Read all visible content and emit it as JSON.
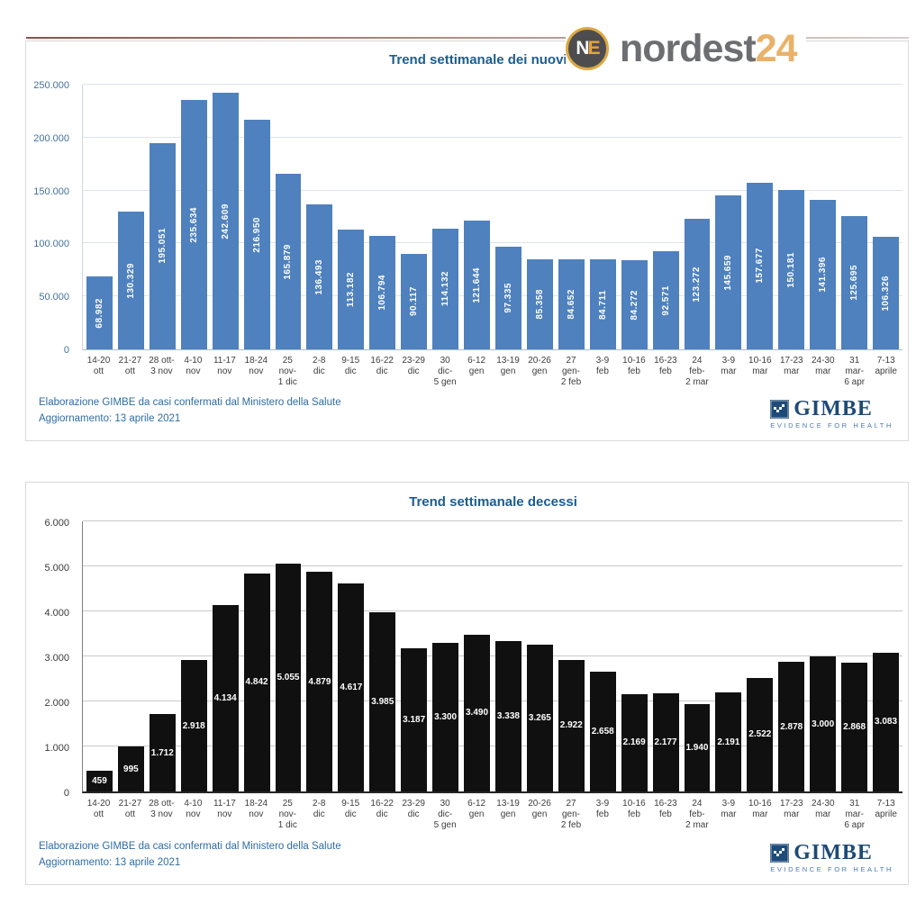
{
  "brand": {
    "badge_letter_n": "N",
    "badge_letter_e": "E",
    "name_part": "nordest",
    "number_part": "24",
    "name_color": "#6d6e71",
    "number_color": "#e9b269"
  },
  "gimbe_logo": {
    "name": "GIMBE",
    "tagline": "EVIDENCE FOR HEALTH",
    "color": "#1e4b78"
  },
  "footer": {
    "line1": "Elaborazione GIMBE da casi confermati dal Ministero della Salute",
    "line2": "Aggiornamento: 13 aprile 2021"
  },
  "chart_data": [
    {
      "type": "bar",
      "title": "Trend settimanale dei nuovi casi",
      "categories": [
        "14-20\nott",
        "21-27\nott",
        "28 ott-\n3 nov",
        "4-10\nnov",
        "11-17\nnov",
        "18-24\nnov",
        "25 nov-\n1 dic",
        "2-8 dic",
        "9-15\ndic",
        "16-22\ndic",
        "23-29\ndic",
        "30 dic-\n5 gen",
        "6-12\ngen",
        "13-19\ngen",
        "20-26\ngen",
        "27 gen-\n2 feb",
        "3-9 feb",
        "10-16\nfeb",
        "16-23\nfeb",
        "24 feb-\n2 mar",
        "3-9\nmar",
        "10-16\nmar",
        "17-23\nmar",
        "24-30\nmar",
        "31\nmar-\n6 apr",
        "7-13\naprile"
      ],
      "values": [
        68982,
        130329,
        195051,
        235634,
        242609,
        216950,
        165879,
        136493,
        113182,
        106794,
        90117,
        114132,
        121644,
        97335,
        85358,
        84652,
        84711,
        84272,
        92571,
        123272,
        145659,
        157677,
        150181,
        141396,
        125695,
        106326
      ],
      "value_labels": [
        "68.982",
        "130.329",
        "195.051",
        "235.634",
        "242.609",
        "216.950",
        "165.879",
        "136.493",
        "113.182",
        "106.794",
        "90.117",
        "114.132",
        "121.644",
        "97.335",
        "85.358",
        "84.652",
        "84.711",
        "84.272",
        "92.571",
        "123.272",
        "145.659",
        "157.677",
        "150.181",
        "141.396",
        "125.695",
        "106.326"
      ],
      "xlabel": "",
      "ylabel": "",
      "ylim": [
        0,
        250000
      ],
      "ytick_values": [
        0,
        50000,
        100000,
        150000,
        200000,
        250000
      ],
      "ytick_labels": [
        "0",
        "50.000",
        "100.000",
        "150.000",
        "200.000",
        "250.000"
      ],
      "bar_color": "#4e81bd",
      "value_label_color": "#ffffff",
      "value_label_rotation": "vertical",
      "grid": true,
      "legend": "none"
    },
    {
      "type": "bar",
      "title": "Trend settimanale decessi",
      "categories": [
        "14-20\nott",
        "21-27\nott",
        "28 ott-\n3 nov",
        "4-10\nnov",
        "11-17\nnov",
        "18-24\nnov",
        "25 nov-\n1 dic",
        "2-8 dic",
        "9-15\ndic",
        "16-22\ndic",
        "23-29\ndic",
        "30 dic-\n5 gen",
        "6-12\ngen",
        "13-19\ngen",
        "20-26\ngen",
        "27 gen-\n2 feb",
        "3-9 feb",
        "10-16\nfeb",
        "16-23\nfeb",
        "24 feb-\n2 mar",
        "3-9\nmar",
        "10-16\nmar",
        "17-23\nmar",
        "24-30\nmar",
        "31\nmar-\n6 apr",
        "7-13\naprile"
      ],
      "values": [
        459,
        995,
        1712,
        2918,
        4134,
        4842,
        5055,
        4879,
        4617,
        3985,
        3187,
        3300,
        3490,
        3338,
        3265,
        2922,
        2658,
        2169,
        2177,
        1940,
        2191,
        2522,
        2878,
        3000,
        2868,
        3083
      ],
      "value_labels": [
        "459",
        "995",
        "1.712",
        "2.918",
        "4.134",
        "4.842",
        "5.055",
        "4.879",
        "4.617",
        "3.985",
        "3.187",
        "3.300",
        "3.490",
        "3.338",
        "3.265",
        "2.922",
        "2.658",
        "2.169",
        "2.177",
        "1.940",
        "2.191",
        "2.522",
        "2.878",
        "3.000",
        "2.868",
        "3.083"
      ],
      "xlabel": "",
      "ylabel": "",
      "ylim": [
        0,
        6000
      ],
      "ytick_values": [
        0,
        1000,
        2000,
        3000,
        4000,
        5000,
        6000
      ],
      "ytick_labels": [
        "0",
        "1.000",
        "2.000",
        "3.000",
        "4.000",
        "5.000",
        "6.000"
      ],
      "bar_color": "#101010",
      "value_label_color": "#ffffff",
      "value_label_rotation": "horizontal",
      "grid": true,
      "legend": "none"
    }
  ]
}
